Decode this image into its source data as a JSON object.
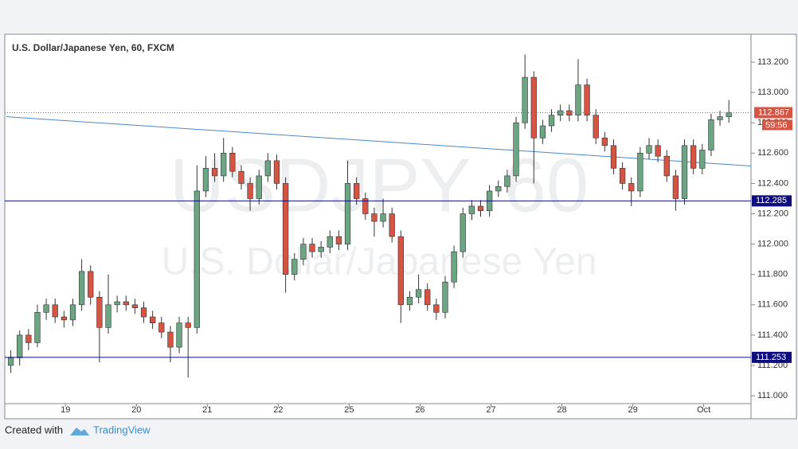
{
  "chart_data": {
    "type": "candlestick",
    "title": "U.S. Dollar/Japanese Yen, 60, FXCM",
    "watermark_symbol": "USDJPY, 60",
    "watermark_name": "U.S. Dollar/Japanese Yen",
    "up_color": "#6ba583",
    "down_color": "#d75442",
    "x": [
      1.5,
      4.5,
      7.5,
      10.5,
      13.5,
      16.5,
      19.5,
      22.5,
      25.5,
      28.5,
      31.5,
      34.5,
      37.5,
      40.5,
      43.5,
      46.5,
      49.5,
      52.5,
      55.5,
      58.5,
      61.5,
      64.5,
      67.5,
      70.5,
      73.5,
      76.5,
      79.5,
      82.5,
      85.5,
      88.5,
      91.5,
      94.5,
      97.5,
      100.5,
      103.5,
      106.5,
      109.5,
      112.5,
      115.5,
      118.5,
      121.5,
      124.5,
      127.5,
      130.5,
      133.5,
      136.5,
      139.5,
      142.5,
      145.5,
      148.5,
      151.5,
      154.5,
      157.5,
      160.5,
      163.5,
      166.5,
      169.5,
      172.5,
      175.5,
      178.5,
      181.5,
      184.5,
      187.5,
      190.5,
      193.5,
      196.5,
      199.5,
      202.5,
      205.5,
      208.5,
      211.5,
      214.5,
      217.5,
      220.5,
      223.5,
      226.5,
      229.5,
      232.5,
      235.5,
      238.5,
      241.5,
      244.5
    ],
    "open": [
      111.2,
      111.25,
      111.4,
      111.35,
      111.55,
      111.6,
      111.52,
      111.5,
      111.6,
      111.82,
      111.65,
      111.45,
      111.6,
      111.62,
      111.6,
      111.58,
      111.52,
      111.48,
      111.42,
      111.32,
      111.48,
      111.45,
      112.35,
      112.5,
      112.45,
      112.6,
      112.48,
      112.4,
      112.3,
      112.45,
      112.55,
      112.4,
      111.8,
      111.9,
      112.0,
      111.95,
      111.98,
      112.05,
      112.0,
      112.4,
      112.3,
      112.2,
      112.15,
      112.2,
      112.05,
      111.6,
      111.65,
      111.7,
      111.6,
      111.55,
      111.75,
      111.95,
      112.2,
      112.25,
      112.22,
      112.35,
      112.38,
      112.45,
      112.8,
      113.1,
      112.7,
      112.78,
      112.85,
      112.88,
      112.85,
      113.05,
      112.85,
      112.7,
      112.65,
      112.5,
      112.4,
      112.35,
      112.6,
      112.65,
      112.58,
      112.45,
      112.3,
      112.65,
      112.5,
      112.62,
      112.82,
      112.84
    ],
    "high": [
      111.3,
      111.43,
      111.44,
      111.6,
      111.64,
      111.64,
      111.56,
      111.64,
      111.9,
      111.86,
      111.69,
      111.8,
      111.66,
      111.66,
      111.64,
      111.62,
      111.56,
      111.52,
      111.46,
      111.52,
      111.52,
      112.52,
      112.58,
      112.6,
      112.7,
      112.64,
      112.52,
      112.44,
      112.49,
      112.6,
      112.59,
      112.44,
      111.94,
      112.04,
      112.04,
      112.02,
      112.09,
      112.09,
      112.55,
      112.44,
      112.34,
      112.24,
      112.3,
      112.24,
      112.09,
      111.69,
      111.8,
      111.74,
      111.64,
      111.79,
      111.99,
      112.24,
      112.29,
      112.29,
      112.39,
      112.42,
      112.49,
      112.84,
      113.25,
      113.14,
      112.82,
      112.89,
      112.92,
      112.92,
      113.22,
      113.09,
      112.89,
      112.74,
      112.69,
      112.54,
      112.44,
      112.64,
      112.7,
      112.69,
      112.62,
      112.49,
      112.69,
      112.69,
      112.66,
      112.86,
      112.88,
      112.95
    ],
    "low": [
      111.15,
      111.2,
      111.3,
      111.32,
      111.5,
      111.48,
      111.45,
      111.46,
      111.56,
      111.6,
      111.22,
      111.41,
      111.55,
      111.56,
      111.54,
      111.48,
      111.44,
      111.38,
      111.22,
      111.28,
      111.12,
      111.41,
      112.31,
      112.41,
      112.41,
      112.44,
      112.36,
      112.22,
      112.26,
      112.41,
      112.36,
      111.68,
      111.76,
      111.86,
      111.91,
      111.91,
      111.94,
      111.96,
      111.96,
      112.26,
      112.16,
      112.05,
      112.11,
      112.01,
      111.48,
      111.56,
      111.61,
      111.56,
      111.5,
      111.51,
      111.71,
      111.91,
      112.16,
      112.18,
      112.18,
      112.31,
      112.34,
      112.41,
      112.76,
      112.4,
      112.66,
      112.74,
      112.81,
      112.81,
      112.81,
      112.81,
      112.66,
      112.61,
      112.46,
      112.36,
      112.25,
      112.31,
      112.56,
      112.54,
      112.41,
      112.22,
      112.26,
      112.46,
      112.46,
      112.58,
      112.78,
      112.8
    ],
    "close": [
      111.25,
      111.4,
      111.35,
      111.55,
      111.6,
      111.52,
      111.5,
      111.6,
      111.82,
      111.65,
      111.45,
      111.6,
      111.62,
      111.6,
      111.58,
      111.52,
      111.48,
      111.42,
      111.32,
      111.48,
      111.45,
      112.35,
      112.5,
      112.45,
      112.6,
      112.48,
      112.4,
      112.3,
      112.45,
      112.55,
      112.4,
      111.8,
      111.9,
      112.0,
      111.95,
      111.98,
      112.05,
      112.0,
      112.4,
      112.3,
      112.2,
      112.15,
      112.2,
      112.05,
      111.6,
      111.65,
      111.7,
      111.6,
      111.55,
      111.75,
      111.95,
      112.2,
      112.25,
      112.22,
      112.35,
      112.38,
      112.45,
      112.8,
      113.1,
      112.7,
      112.78,
      112.85,
      112.88,
      112.85,
      113.05,
      112.85,
      112.7,
      112.65,
      112.5,
      112.4,
      112.35,
      112.6,
      112.65,
      112.58,
      112.45,
      112.3,
      112.65,
      112.5,
      112.62,
      112.82,
      112.84,
      112.867
    ],
    "xlim": [
      0,
      252
    ],
    "xticks": [
      {
        "value": 20,
        "label": "19"
      },
      {
        "value": 44,
        "label": "20"
      },
      {
        "value": 68,
        "label": "21"
      },
      {
        "value": 92,
        "label": "22"
      },
      {
        "value": 116,
        "label": "25"
      },
      {
        "value": 140,
        "label": "26"
      },
      {
        "value": 164,
        "label": "27"
      },
      {
        "value": 188,
        "label": "28"
      },
      {
        "value": 212,
        "label": "29"
      },
      {
        "value": 236,
        "label": "Oct"
      }
    ],
    "ylim": [
      110.948,
      113.384
    ],
    "yticks": [
      {
        "value": 111.0,
        "label": "111.000"
      },
      {
        "value": 111.2,
        "label": "111.200"
      },
      {
        "value": 111.4,
        "label": "111.400"
      },
      {
        "value": 111.6,
        "label": "111.600"
      },
      {
        "value": 111.8,
        "label": "111.800"
      },
      {
        "value": 112.0,
        "label": "112.000"
      },
      {
        "value": 112.2,
        "label": "112.200"
      },
      {
        "value": 112.4,
        "label": "112.400"
      },
      {
        "value": 112.6,
        "label": "112.600"
      },
      {
        "value": 112.8,
        "label": "112.800"
      },
      {
        "value": 113.0,
        "label": "113.000"
      },
      {
        "value": 113.2,
        "label": "113.200"
      }
    ],
    "levels": [
      {
        "value": 112.285,
        "label": "112.285"
      },
      {
        "value": 111.253,
        "label": "111.253"
      }
    ],
    "level_color": "#0d0d80",
    "last_price": {
      "value": 112.867,
      "label": "112.867"
    },
    "countdown": "59:56",
    "trend_line": {
      "x": [
        0,
        252
      ],
      "y": [
        112.84,
        112.515
      ],
      "color": "#4a86c8"
    }
  },
  "footer": {
    "created_with": "Created with",
    "brand": "TradingView"
  }
}
